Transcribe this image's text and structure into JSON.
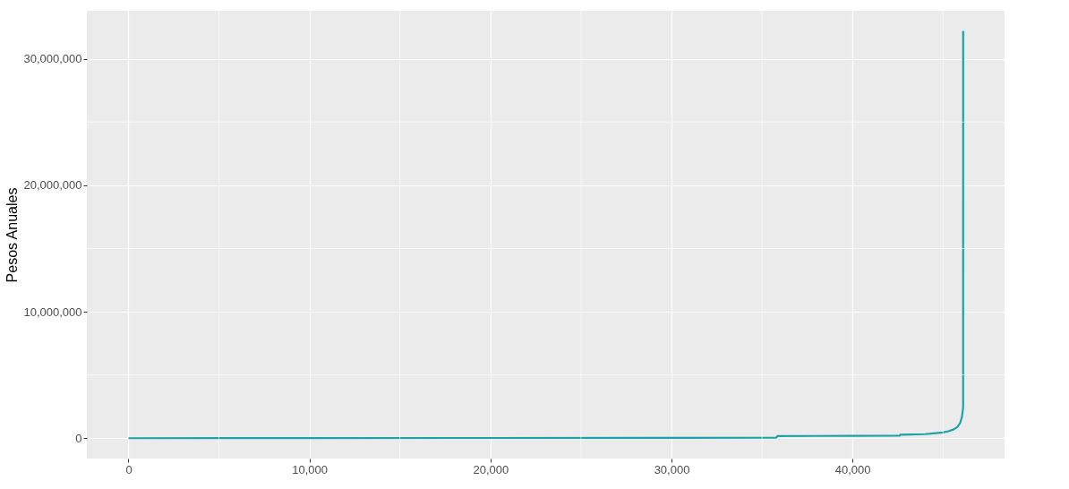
{
  "chart_data": {
    "type": "line",
    "ylabel": "Pesos Anuales",
    "x": [
      0,
      10000,
      20000,
      30000,
      35800,
      35850,
      38000,
      40000,
      42600,
      42650,
      44000,
      44600,
      45000,
      45300,
      45600,
      45800,
      45950,
      46050,
      46100,
      46113,
      46114
    ],
    "series": [
      {
        "color": "#1aa3a8",
        "values": [
          0,
          10000,
          20000,
          30000,
          50000,
          170000,
          180000,
          190000,
          200000,
          280000,
          320000,
          400000,
          450000,
          550000,
          700000,
          900000,
          1200000,
          1700000,
          2300000,
          2500000,
          32200000
        ]
      }
    ],
    "xlim": [
      -2300,
      48400
    ],
    "ylim": [
      -1610000,
      33800000
    ],
    "xticks": [
      0,
      {
        "value": 10000,
        "label": "10,000"
      },
      {
        "value": 20000,
        "label": "20,000"
      },
      {
        "value": 30000,
        "label": "30,000"
      },
      {
        "value": 40000,
        "label": "40,000"
      }
    ],
    "yticks": [
      0,
      {
        "value": 10000000,
        "label": "10,000,000"
      },
      {
        "value": 20000000,
        "label": "20,000,000"
      },
      {
        "value": 30000000,
        "label": "30,000,000"
      }
    ],
    "grid": true,
    "marker": "none",
    "line_style": "solid"
  }
}
